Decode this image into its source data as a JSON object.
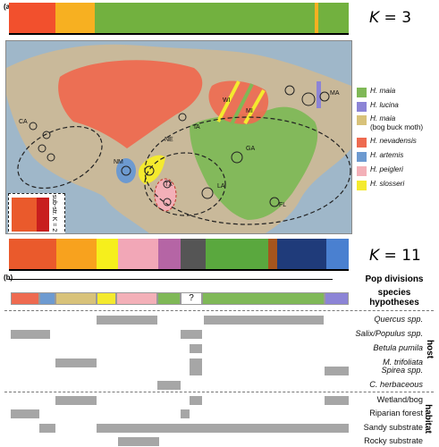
{
  "panel_a_label": "(a)",
  "panel_b_label": "(b)",
  "k3": {
    "label_k": "K",
    "label_rest": " = 3"
  },
  "k11": {
    "label_k": "K",
    "label_rest": " = 11"
  },
  "substructure_label": "sub-str. K = 2",
  "map": {
    "region_labels": [
      "CA",
      "NM",
      "TX",
      "NE",
      "IA",
      "WI",
      "MI",
      "LA",
      "GA",
      "FL",
      "MA"
    ],
    "unknown_marker": "?"
  },
  "legend": [
    {
      "name": "H. maia",
      "color": "#7fb857"
    },
    {
      "name": "H. lucina",
      "color": "#8c84d6"
    },
    {
      "name": "H. maia",
      "note": "(bog buck moth)",
      "color": "#d8c27a"
    },
    {
      "name": "H. nevadensis",
      "color": "#ee6a50"
    },
    {
      "name": "H. artemis",
      "color": "#6d9ad0"
    },
    {
      "name": "H. peigleri",
      "color": "#f3b0b8"
    },
    {
      "name": "H. slosseri",
      "color": "#f4ea2e"
    }
  ],
  "headers": {
    "pop_divisions": "Pop divisions",
    "species_hypotheses_line1": "species",
    "species_hypotheses_line2": "hypotheses",
    "unknown": "?"
  },
  "host_rows": [
    "Quercus spp.",
    "Salix/Populus spp.",
    "Betula pumila",
    "M. trifoliata",
    "Spirea spp.",
    "C. herbaceous"
  ],
  "habitat_rows": [
    "Wetland/bog",
    "Riparian forest",
    "Sandy substrate",
    "Rocky substrate"
  ],
  "side_labels": {
    "host": "host",
    "habitat": "habitat"
  },
  "colors": {
    "maia": "#7fb857",
    "lucina": "#8c84d6",
    "bog": "#d8c27a",
    "nevadensis": "#ee6a50",
    "artemis": "#6d9ad0",
    "peigleri": "#f3b0b8",
    "slosseri": "#f4ea2e",
    "k3_green": "#72b13f",
    "k3_orange": "#f2502d",
    "k3_gold": "#f7b021",
    "k11_red": "#ea5a2c",
    "k11_orange": "#f8a21e",
    "k11_yellow": "#f6ef1c",
    "k11_pink": "#f2a7b7",
    "k11_magenta": "#b565a5",
    "k11_green": "#5aa83e",
    "k11_navy": "#1f3b7a",
    "k11_brown": "#a6551d",
    "k11_blue": "#4a80d0",
    "grey": "#a6a6a6"
  }
}
